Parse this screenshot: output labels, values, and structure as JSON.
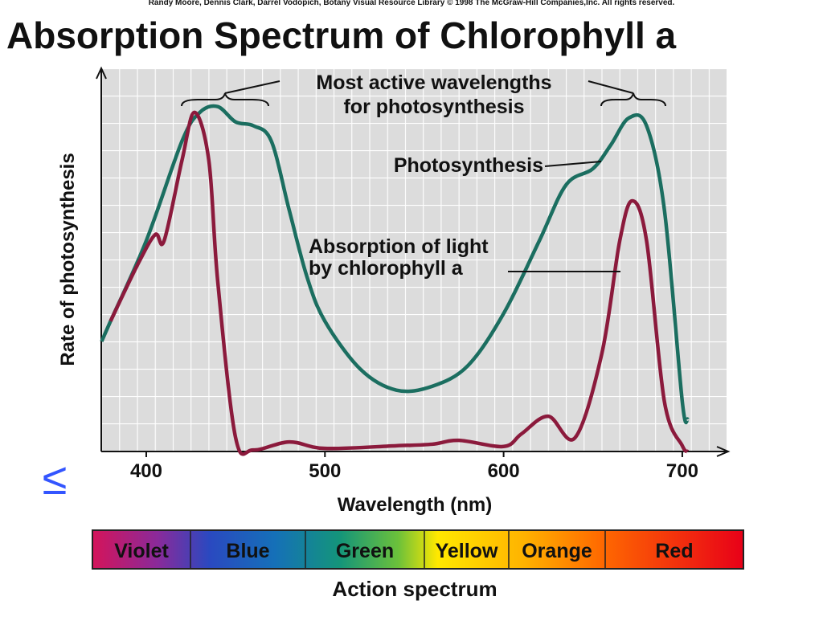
{
  "credit": "Randy Moore, Dennis Clark, Darrel Vodopich, Botany Visual Resource Library © 1998 The McGraw-Hill Companies,Inc. All rights reserved.",
  "nav_symbol": "≤",
  "chart_data": {
    "type": "line",
    "title": "Absorption Spectrum of Chlorophyll a",
    "x_label": "Wavelength (nm)",
    "y_label": "Rate of photosynthesis",
    "xlim": [
      375,
      725
    ],
    "ylim": [
      0,
      100
    ],
    "xticks": [
      400,
      500,
      600,
      700
    ],
    "grid": true,
    "annotations": [
      "Most active wavelengths",
      "for photosynthesis"
    ],
    "series": [
      {
        "name": "Photosynthesis",
        "color": "#1b6e60",
        "x": [
          375,
          380,
          400,
          420,
          430,
          440,
          450,
          460,
          470,
          480,
          490,
          500,
          520,
          540,
          560,
          580,
          600,
          620,
          635,
          650,
          660,
          670,
          680,
          690,
          700,
          703
        ],
        "values": [
          28.7,
          34,
          55,
          81,
          88.5,
          90,
          86,
          85,
          81,
          63,
          45.5,
          34,
          21.4,
          16,
          17,
          22.4,
          36,
          55,
          69.6,
          73.8,
          80,
          87,
          85,
          63,
          13,
          8.4
        ]
      },
      {
        "name_lines": [
          "Absorption of light",
          "by chlorophyll a"
        ],
        "color": "#8b1a3c",
        "x": [
          380,
          395,
          405,
          410,
          420,
          427,
          435,
          440,
          450,
          460,
          480,
          500,
          540,
          560,
          575,
          600,
          610,
          625,
          640,
          655,
          665,
          672,
          680,
          690,
          700,
          703
        ],
        "values": [
          34,
          48.6,
          56.6,
          55,
          76,
          88.5,
          76,
          44.4,
          3.6,
          0.4,
          2.5,
          0.8,
          1.5,
          1.9,
          2.9,
          1.3,
          4.6,
          9.2,
          3.6,
          25.6,
          55,
          65.4,
          55,
          13,
          1.5,
          0
        ]
      }
    ],
    "spectrum": {
      "labels": [
        "Violet",
        "Blue",
        "Green",
        "Yellow",
        "Orange",
        "Red"
      ],
      "title": "Action spectrum"
    }
  }
}
